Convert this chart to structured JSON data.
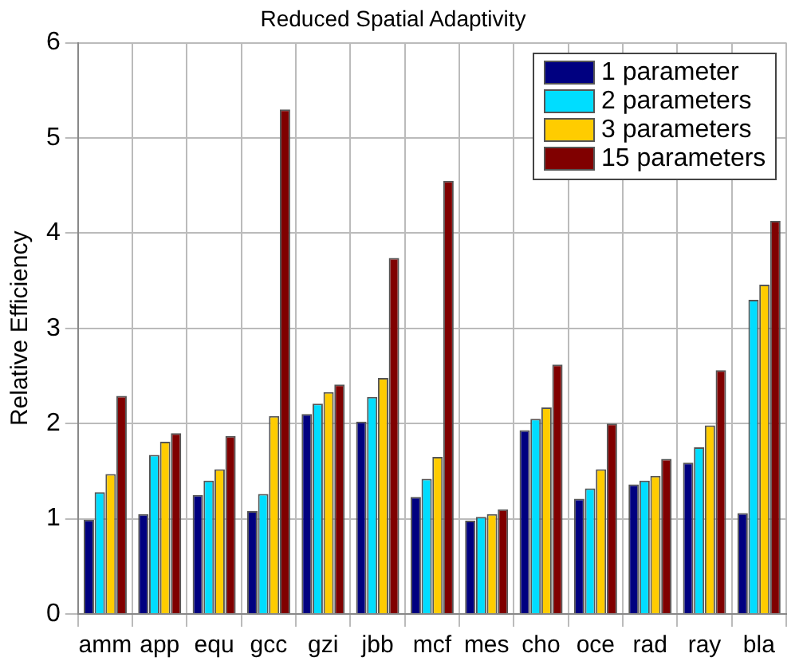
{
  "chart_data": {
    "type": "bar",
    "title": "Reduced Spatial Adaptivity",
    "ylabel": "Relative Efficiency",
    "categories": [
      "amm",
      "app",
      "equ",
      "gcc",
      "gzi",
      "jbb",
      "mcf",
      "mes",
      "cho",
      "oce",
      "rad",
      "ray",
      "bla"
    ],
    "series": [
      {
        "name": "1 parameter",
        "color": "#000080",
        "values": [
          0.99,
          1.05,
          1.25,
          1.08,
          2.1,
          2.02,
          1.23,
          0.98,
          1.93,
          1.21,
          1.36,
          1.59,
          1.06
        ]
      },
      {
        "name": "2 parameters",
        "color": "#00ddff",
        "values": [
          1.28,
          1.67,
          1.4,
          1.26,
          2.21,
          2.28,
          1.42,
          1.02,
          2.05,
          1.32,
          1.4,
          1.75,
          3.3
        ]
      },
      {
        "name": "3 parameters",
        "color": "#ffcc00",
        "values": [
          1.47,
          1.81,
          1.52,
          2.08,
          2.33,
          2.48,
          1.65,
          1.05,
          2.17,
          1.52,
          1.45,
          1.98,
          3.46
        ]
      },
      {
        "name": "15 parameters",
        "color": "#800000",
        "values": [
          2.29,
          1.9,
          1.87,
          5.3,
          2.41,
          3.74,
          4.55,
          1.1,
          2.62,
          2.0,
          1.63,
          2.56,
          4.13
        ]
      }
    ],
    "ylim": [
      0,
      6
    ],
    "yticks": [
      0,
      1,
      2,
      3,
      4,
      5,
      6
    ],
    "grid": true,
    "legend": "top right"
  }
}
